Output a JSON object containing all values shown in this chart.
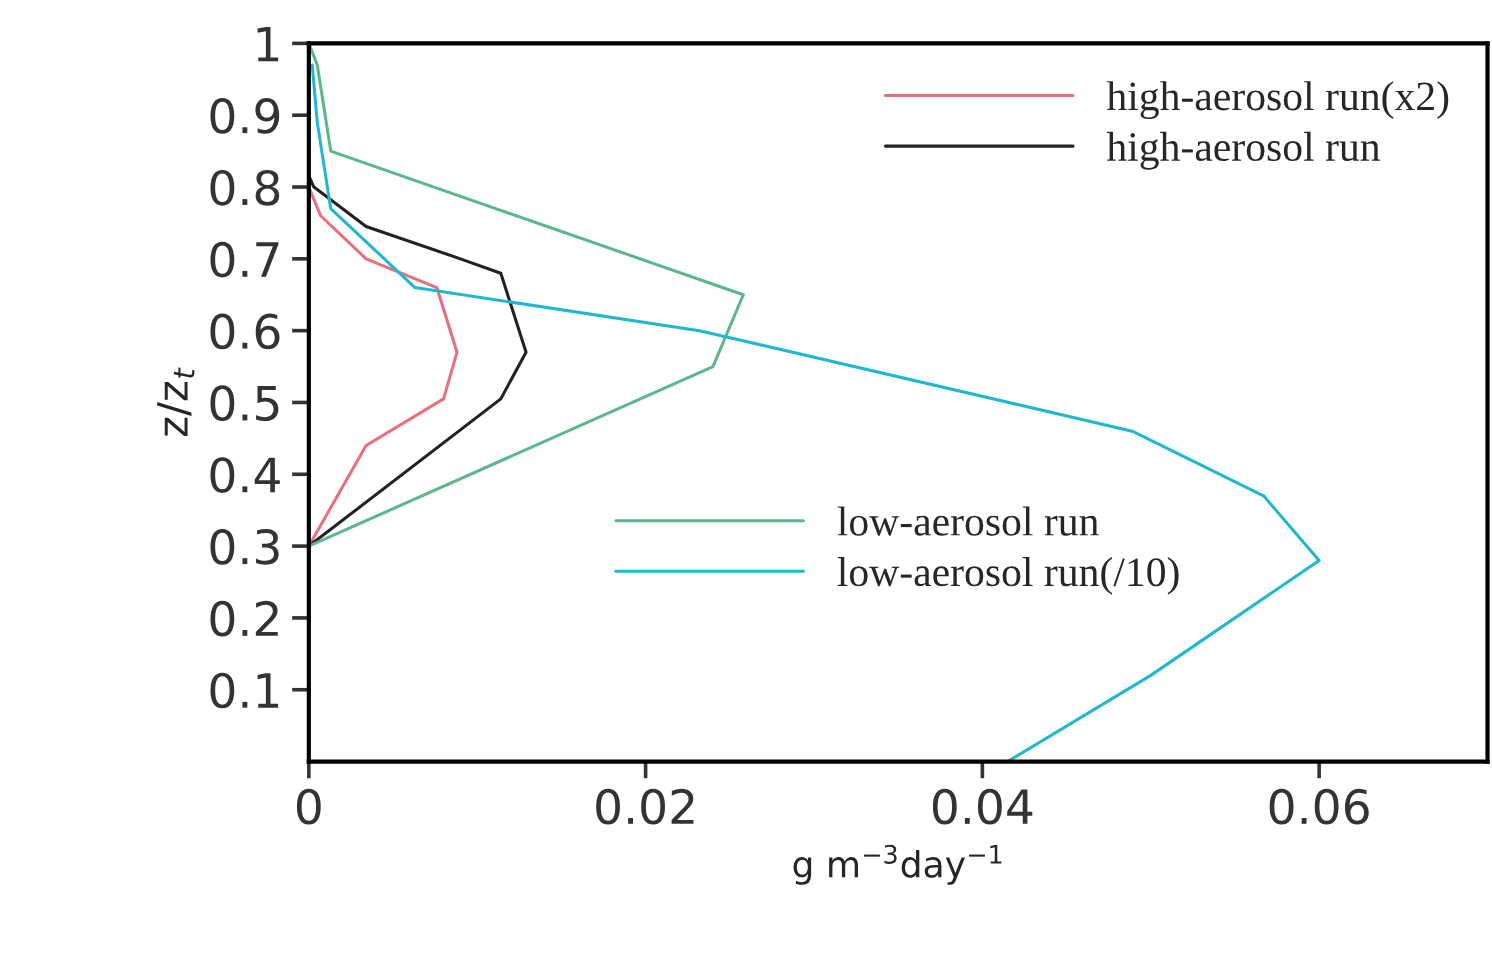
{
  "chart_data": {
    "type": "line",
    "xlabel": "g m$^{−3}$day$^{−1}$",
    "ylabel": "z/z$_{t}$",
    "xlim": [
      0,
      0.07
    ],
    "xticks": [
      0,
      0.02,
      0.04,
      0.06
    ],
    "ylim": [
      0,
      1
    ],
    "yticks": [
      0.1,
      0.2,
      0.3,
      0.4,
      0.5,
      0.6,
      0.7,
      0.8,
      0.9,
      1
    ],
    "grid": false,
    "legend": "top right",
    "series": [
      {
        "name": "high-aerosol run(x2)",
        "color": "#e8707a",
        "x": [
          0,
          0.0034,
          0.008,
          0.0088,
          0.0076,
          0.0034,
          0.0007,
          0
        ],
        "values": [
          0.3,
          0.44,
          0.505,
          0.57,
          0.66,
          0.7,
          0.76,
          0.8
        ]
      },
      {
        "name": "high-aerosol run",
        "color": "#222222",
        "x": [
          0,
          0.0114,
          0.0129,
          0.0114,
          0.009,
          0.0034,
          0.0003,
          0
        ],
        "values": [
          0.3,
          0.505,
          0.57,
          0.68,
          0.7,
          0.745,
          0.8,
          0.815
        ]
      },
      {
        "name": "low-aerosol run",
        "color": "#5cb88a",
        "x": [
          0,
          0.024,
          0.0258,
          0.0013,
          0.0005,
          0
        ],
        "values": [
          0.3,
          0.55,
          0.65,
          0.85,
          0.97,
          1
        ]
      },
      {
        "name": "low-aerosol run(/10)",
        "color": "#1fb8d0",
        "x": [
          0.0415,
          0.05,
          0.06,
          0.0567,
          0.0489,
          0.0232,
          0.0063,
          0.0013,
          0.0005,
          0.0002
        ],
        "values": [
          0,
          0.12,
          0.28,
          0.37,
          0.46,
          0.6,
          0.66,
          0.77,
          0.89,
          0.97
        ]
      }
    ]
  }
}
